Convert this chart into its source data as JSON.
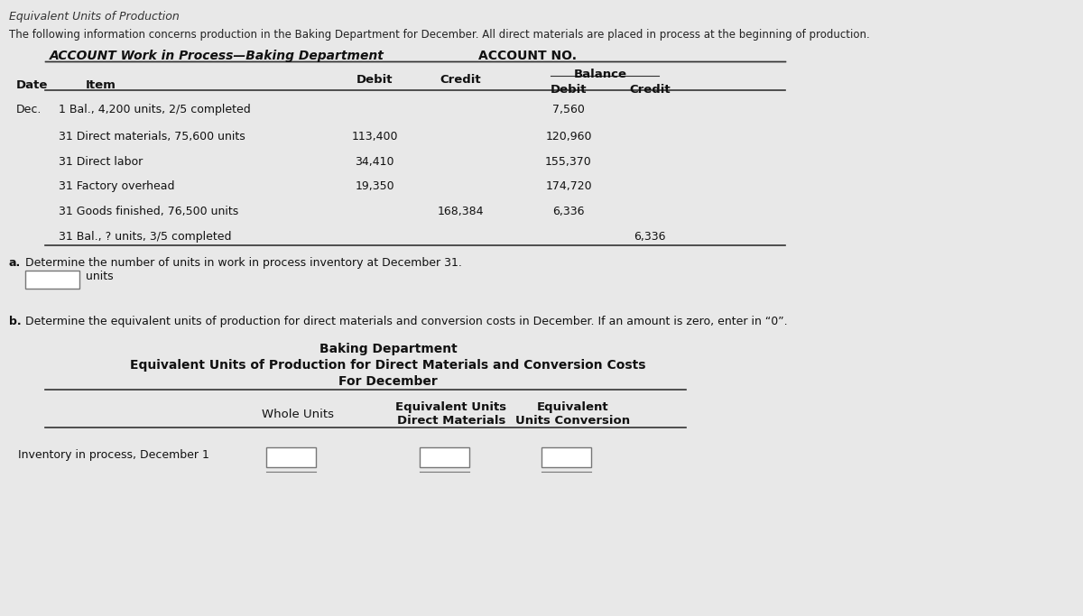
{
  "bg_color": "#e8e8e8",
  "title_top": "Equivalent Units of Production",
  "subtitle": "The following information concerns production in the Baking Department for December. All direct materials are placed in process at the beginning of production.",
  "account_title": "ACCOUNT Work in Process—Baking Department",
  "account_no_label": "ACCOUNT NO.",
  "rows": [
    {
      "date": "Dec.",
      "day": "1",
      "item": "Bal., 4,200 units, 2/5 completed",
      "debit": "",
      "credit": "",
      "bal_debit": "7,560",
      "bal_credit": ""
    },
    {
      "date": "",
      "day": "31",
      "item": "Direct materials, 75,600 units",
      "debit": "113,400",
      "credit": "",
      "bal_debit": "120,960",
      "bal_credit": ""
    },
    {
      "date": "",
      "day": "31",
      "item": "Direct labor",
      "debit": "34,410",
      "credit": "",
      "bal_debit": "155,370",
      "bal_credit": ""
    },
    {
      "date": "",
      "day": "31",
      "item": "Factory overhead",
      "debit": "19,350",
      "credit": "",
      "bal_debit": "174,720",
      "bal_credit": ""
    },
    {
      "date": "",
      "day": "31",
      "item": "Goods finished, 76,500 units",
      "debit": "",
      "credit": "168,384",
      "bal_debit": "6,336",
      "bal_credit": ""
    },
    {
      "date": "",
      "day": "31",
      "item": "Bal., ? units, 3/5 completed",
      "debit": "",
      "credit": "",
      "bal_debit": "",
      "bal_credit": "6,336"
    }
  ],
  "question_a_label": "a.",
  "question_a_text": "Determine the number of units in work in process inventory at December 31.",
  "question_a_units": "units",
  "question_b_label": "b.",
  "question_b_text": "Determine the equivalent units of production for direct materials and conversion costs in December. If an amount is zero, enter in “0”.",
  "table_b_title1": "Baking Department",
  "table_b_title2": "Equivalent Units of Production for Direct Materials and Conversion Costs",
  "table_b_title3": "For December",
  "table_b_col1": "Whole Units",
  "table_b_col2_line1": "Equivalent Units",
  "table_b_col2_line2": "Direct Materials",
  "table_b_col3_line1": "Equivalent",
  "table_b_col3_line2": "Units Conversion",
  "table_b_row1": "Inventory in process, December 1"
}
